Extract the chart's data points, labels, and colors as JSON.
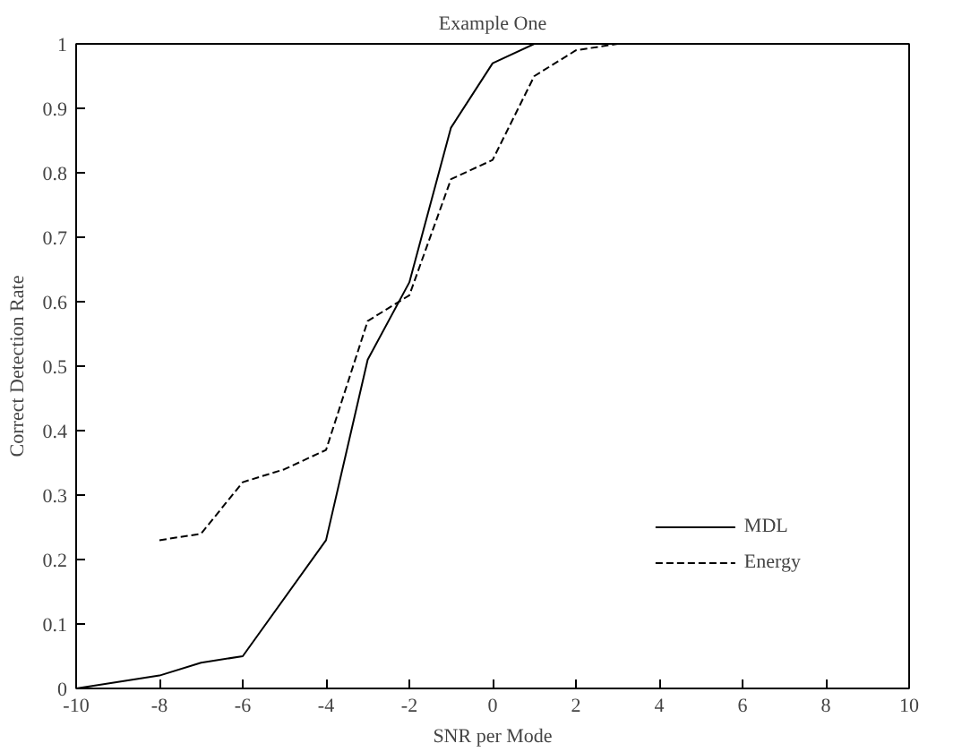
{
  "chart_data": {
    "type": "line",
    "title": "Example One",
    "xlabel": "SNR per Mode",
    "ylabel": "Correct Detection Rate",
    "xlim": [
      -10,
      10
    ],
    "xticks": [
      -10,
      -8,
      -6,
      -4,
      -2,
      0,
      2,
      4,
      6,
      8,
      10
    ],
    "ylim": [
      0,
      1
    ],
    "yticks": [
      0,
      0.1,
      0.2,
      0.3,
      0.4,
      0.5,
      0.6,
      0.7,
      0.8,
      0.9,
      1
    ],
    "grid": false,
    "legend": "bottom right",
    "marker": "none",
    "series": [
      {
        "name": "MDL",
        "color": "#000000",
        "line_style": "solid",
        "x": [
          -10,
          -8,
          -7,
          -6,
          -4,
          -3,
          -2,
          -1,
          0,
          1,
          2,
          3,
          4,
          5
        ],
        "values": [
          0,
          0.02,
          0.04,
          0.05,
          0.23,
          0.51,
          0.63,
          0.87,
          0.97,
          1,
          1,
          1,
          1,
          1
        ]
      },
      {
        "name": "Energy",
        "color": "#000000",
        "line_style": "dashed",
        "x": [
          -8,
          -7,
          -6,
          -5,
          -4,
          -3,
          -2,
          -1,
          0,
          1,
          2,
          3,
          4,
          5
        ],
        "values": [
          0.23,
          0.24,
          0.32,
          0.34,
          0.37,
          0.57,
          0.61,
          0.79,
          0.82,
          0.95,
          0.99,
          1,
          1,
          1
        ]
      }
    ]
  }
}
